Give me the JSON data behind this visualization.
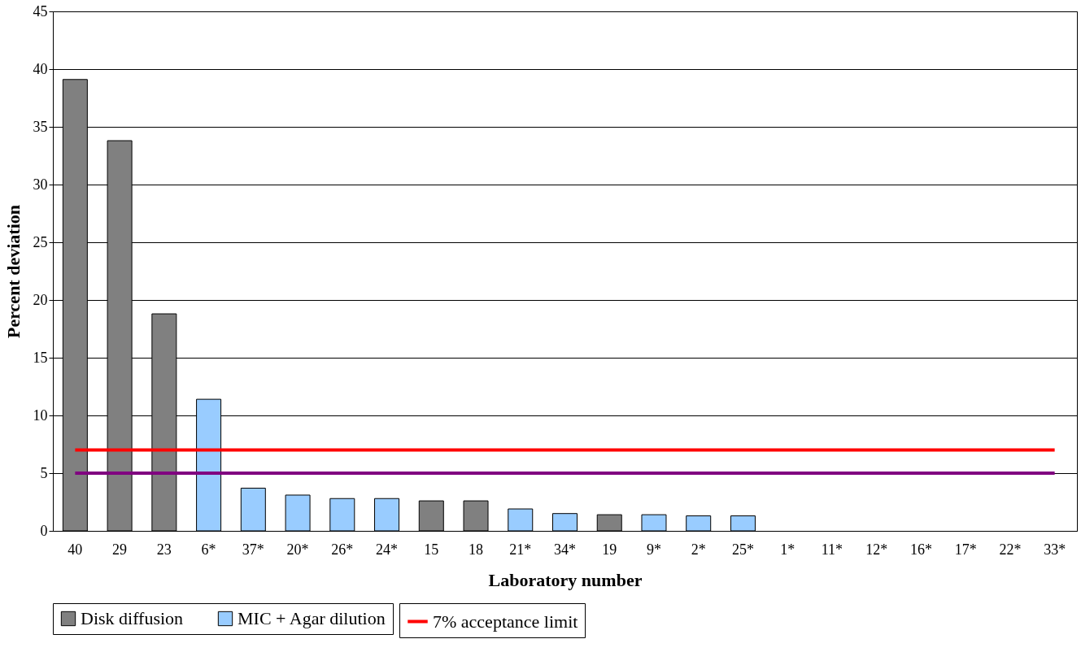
{
  "chart_data": {
    "type": "bar",
    "xlabel": "Laboratory number",
    "ylabel": "Percent deviation",
    "categories": [
      "40",
      "29",
      "23",
      "6*",
      "37*",
      "20*",
      "26*",
      "24*",
      "15",
      "18",
      "21*",
      "34*",
      "19",
      "9*",
      "2*",
      "25*",
      "1*",
      "11*",
      "12*",
      "16*",
      "17*",
      "22*",
      "33*"
    ],
    "series": [
      {
        "name": "Disk diffusion",
        "color": "#808080",
        "values": [
          39.1,
          33.8,
          18.8,
          null,
          null,
          null,
          null,
          null,
          2.6,
          2.6,
          null,
          null,
          1.4,
          null,
          null,
          null,
          null,
          null,
          null,
          null,
          null,
          null,
          null
        ]
      },
      {
        "name": "MIC + Agar dilution",
        "color": "#99ccff",
        "values": [
          null,
          null,
          null,
          11.4,
          3.7,
          3.1,
          2.8,
          2.8,
          null,
          null,
          1.9,
          1.5,
          null,
          1.4,
          1.3,
          1.3,
          0,
          0,
          0,
          0,
          0,
          0,
          0
        ]
      }
    ],
    "ref_lines": [
      {
        "axis": "y",
        "value": 7,
        "label": "7% acceptance limit",
        "color": "#ff0000"
      },
      {
        "axis": "y",
        "value": 5,
        "color": "#800080"
      }
    ],
    "ylim": [
      0,
      45
    ],
    "yticks": [
      0,
      5,
      10,
      15,
      20,
      25,
      30,
      35,
      40,
      45
    ],
    "grid": "y",
    "legend": "bottom"
  }
}
